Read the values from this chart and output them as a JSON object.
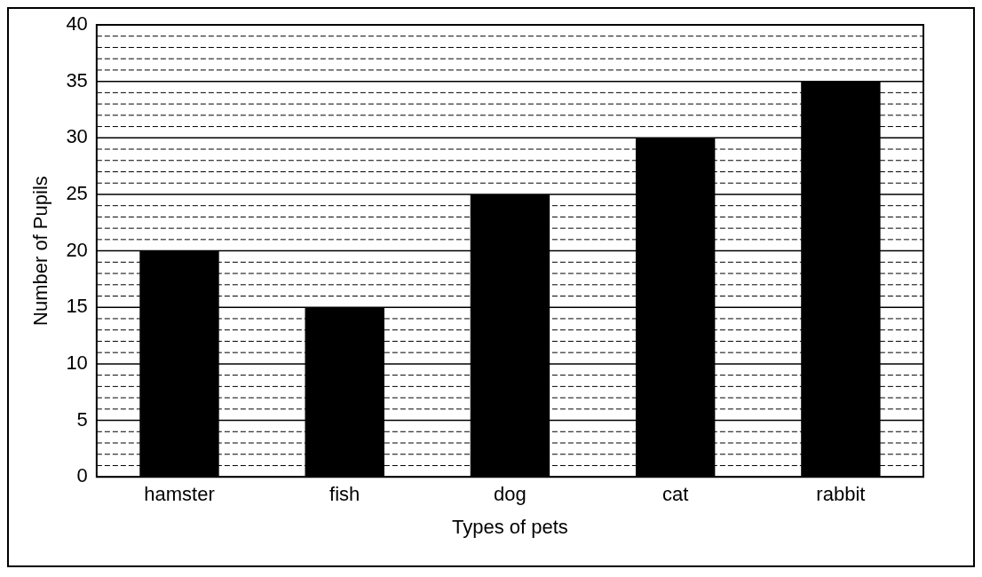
{
  "chart_data": {
    "type": "bar",
    "xlabel": "Types of pets",
    "ylabel": "Number of Pupils",
    "categories": [
      "hamster",
      "fish",
      "dog",
      "cat",
      "rabbit"
    ],
    "values": [
      20,
      15,
      25,
      30,
      35
    ],
    "color": "#000000",
    "ylim": [
      0,
      40
    ],
    "yticks": [
      0,
      {
        "value": 1,
        "label": null
      },
      {
        "value": 2,
        "label": null
      },
      {
        "value": 3,
        "label": null
      },
      {
        "value": 4,
        "label": null
      },
      5,
      {
        "value": 6,
        "label": null
      },
      {
        "value": 7,
        "label": null
      },
      {
        "value": 8,
        "label": null
      },
      {
        "value": 9,
        "label": null
      },
      10,
      {
        "value": 11,
        "label": null
      },
      {
        "value": 12,
        "label": null
      },
      {
        "value": 13,
        "label": null
      },
      {
        "value": 14,
        "label": null
      },
      15,
      {
        "value": 16,
        "label": null
      },
      {
        "value": 17,
        "label": null
      },
      {
        "value": 18,
        "label": null
      },
      {
        "value": 19,
        "label": null
      },
      20,
      {
        "value": 21,
        "label": null
      },
      {
        "value": 22,
        "label": null
      },
      {
        "value": 23,
        "label": null
      },
      {
        "value": 24,
        "label": null
      },
      25,
      {
        "value": 26,
        "label": null
      },
      {
        "value": 27,
        "label": null
      },
      {
        "value": 28,
        "label": null
      },
      {
        "value": 29,
        "label": null
      },
      30,
      {
        "value": 31,
        "label": null
      },
      {
        "value": 32,
        "label": null
      },
      {
        "value": 33,
        "label": null
      },
      {
        "value": 34,
        "label": null
      },
      35,
      {
        "value": 36,
        "label": null
      },
      {
        "value": 37,
        "label": null
      },
      {
        "value": 38,
        "label": null
      },
      {
        "value": 39,
        "label": null
      },
      40
    ],
    "grid": "y",
    "legend": false
  }
}
